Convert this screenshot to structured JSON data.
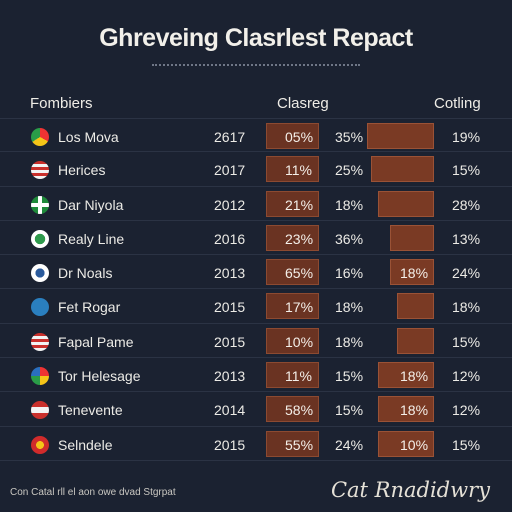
{
  "chart_data": {
    "type": "table",
    "title": "Ghreveing Clasrlest Repact",
    "columns": [
      "Fombiers",
      "Clasreg",
      "Cotling"
    ],
    "rows": [
      {
        "name": "Los Mova",
        "year": "2617",
        "p1": "05%",
        "p2": "35%",
        "p3": "",
        "p4": "19%",
        "flag": "chrome-icon",
        "bar1": 0.8,
        "bar2": 0.9
      },
      {
        "name": "Herices",
        "year": "2017",
        "p1": "11%",
        "p2": "25%",
        "p3": "",
        "p4": "15%",
        "flag": "us-flag-icon",
        "bar1": 0.8,
        "bar2": 0.85
      },
      {
        "name": "Dar Niyola",
        "year": "2012",
        "p1": "21%",
        "p2": "18%",
        "p3": "",
        "p4": "28%",
        "flag": "green-cross-flag-icon",
        "bar1": 0.8,
        "bar2": 0.75
      },
      {
        "name": "Realy Line",
        "year": "2016",
        "p1": "23%",
        "p2": "36%",
        "p3": "",
        "p4": "13%",
        "flag": "green-emblem-icon",
        "bar1": 0.8,
        "bar2": 0.6
      },
      {
        "name": "Dr Noals",
        "year": "2013",
        "p1": "65%",
        "p2": "16%",
        "p3": "18%",
        "p4": "24%",
        "flag": "blue-emblem-icon",
        "bar1": 0.8,
        "bar2": 0.6
      },
      {
        "name": "Fet Rogar",
        "year": "2015",
        "p1": "17%",
        "p2": "18%",
        "p3": "",
        "p4": "18%",
        "flag": "blue-badge-icon",
        "bar1": 0.8,
        "bar2": 0.5
      },
      {
        "name": "Fapal Pame",
        "year": "2015",
        "p1": "10%",
        "p2": "18%",
        "p3": "",
        "p4": "15%",
        "flag": "us-flag-icon",
        "bar1": 0.8,
        "bar2": 0.5
      },
      {
        "name": "Tor Helesage",
        "year": "2013",
        "p1": "11%",
        "p2": "15%",
        "p3": "18%",
        "p4": "12%",
        "flag": "rainbow-circle-icon",
        "bar1": 0.8,
        "bar2": 0.75
      },
      {
        "name": "Tenevente",
        "year": "2014",
        "p1": "58%",
        "p2": "15%",
        "p3": "18%",
        "p4": "12%",
        "flag": "red-stripe-flag-icon",
        "bar1": 0.8,
        "bar2": 0.75
      },
      {
        "name": "Selndele",
        "year": "2015",
        "p1": "55%",
        "p2": "24%",
        "p3": "10%",
        "p4": "15%",
        "flag": "red-emblem-icon",
        "bar1": 0.8,
        "bar2": 0.75
      }
    ]
  },
  "footer": {
    "left": "Con Catal rll el aon owe dvad Stgrpat",
    "signature": "Cat Rnadidwry"
  }
}
